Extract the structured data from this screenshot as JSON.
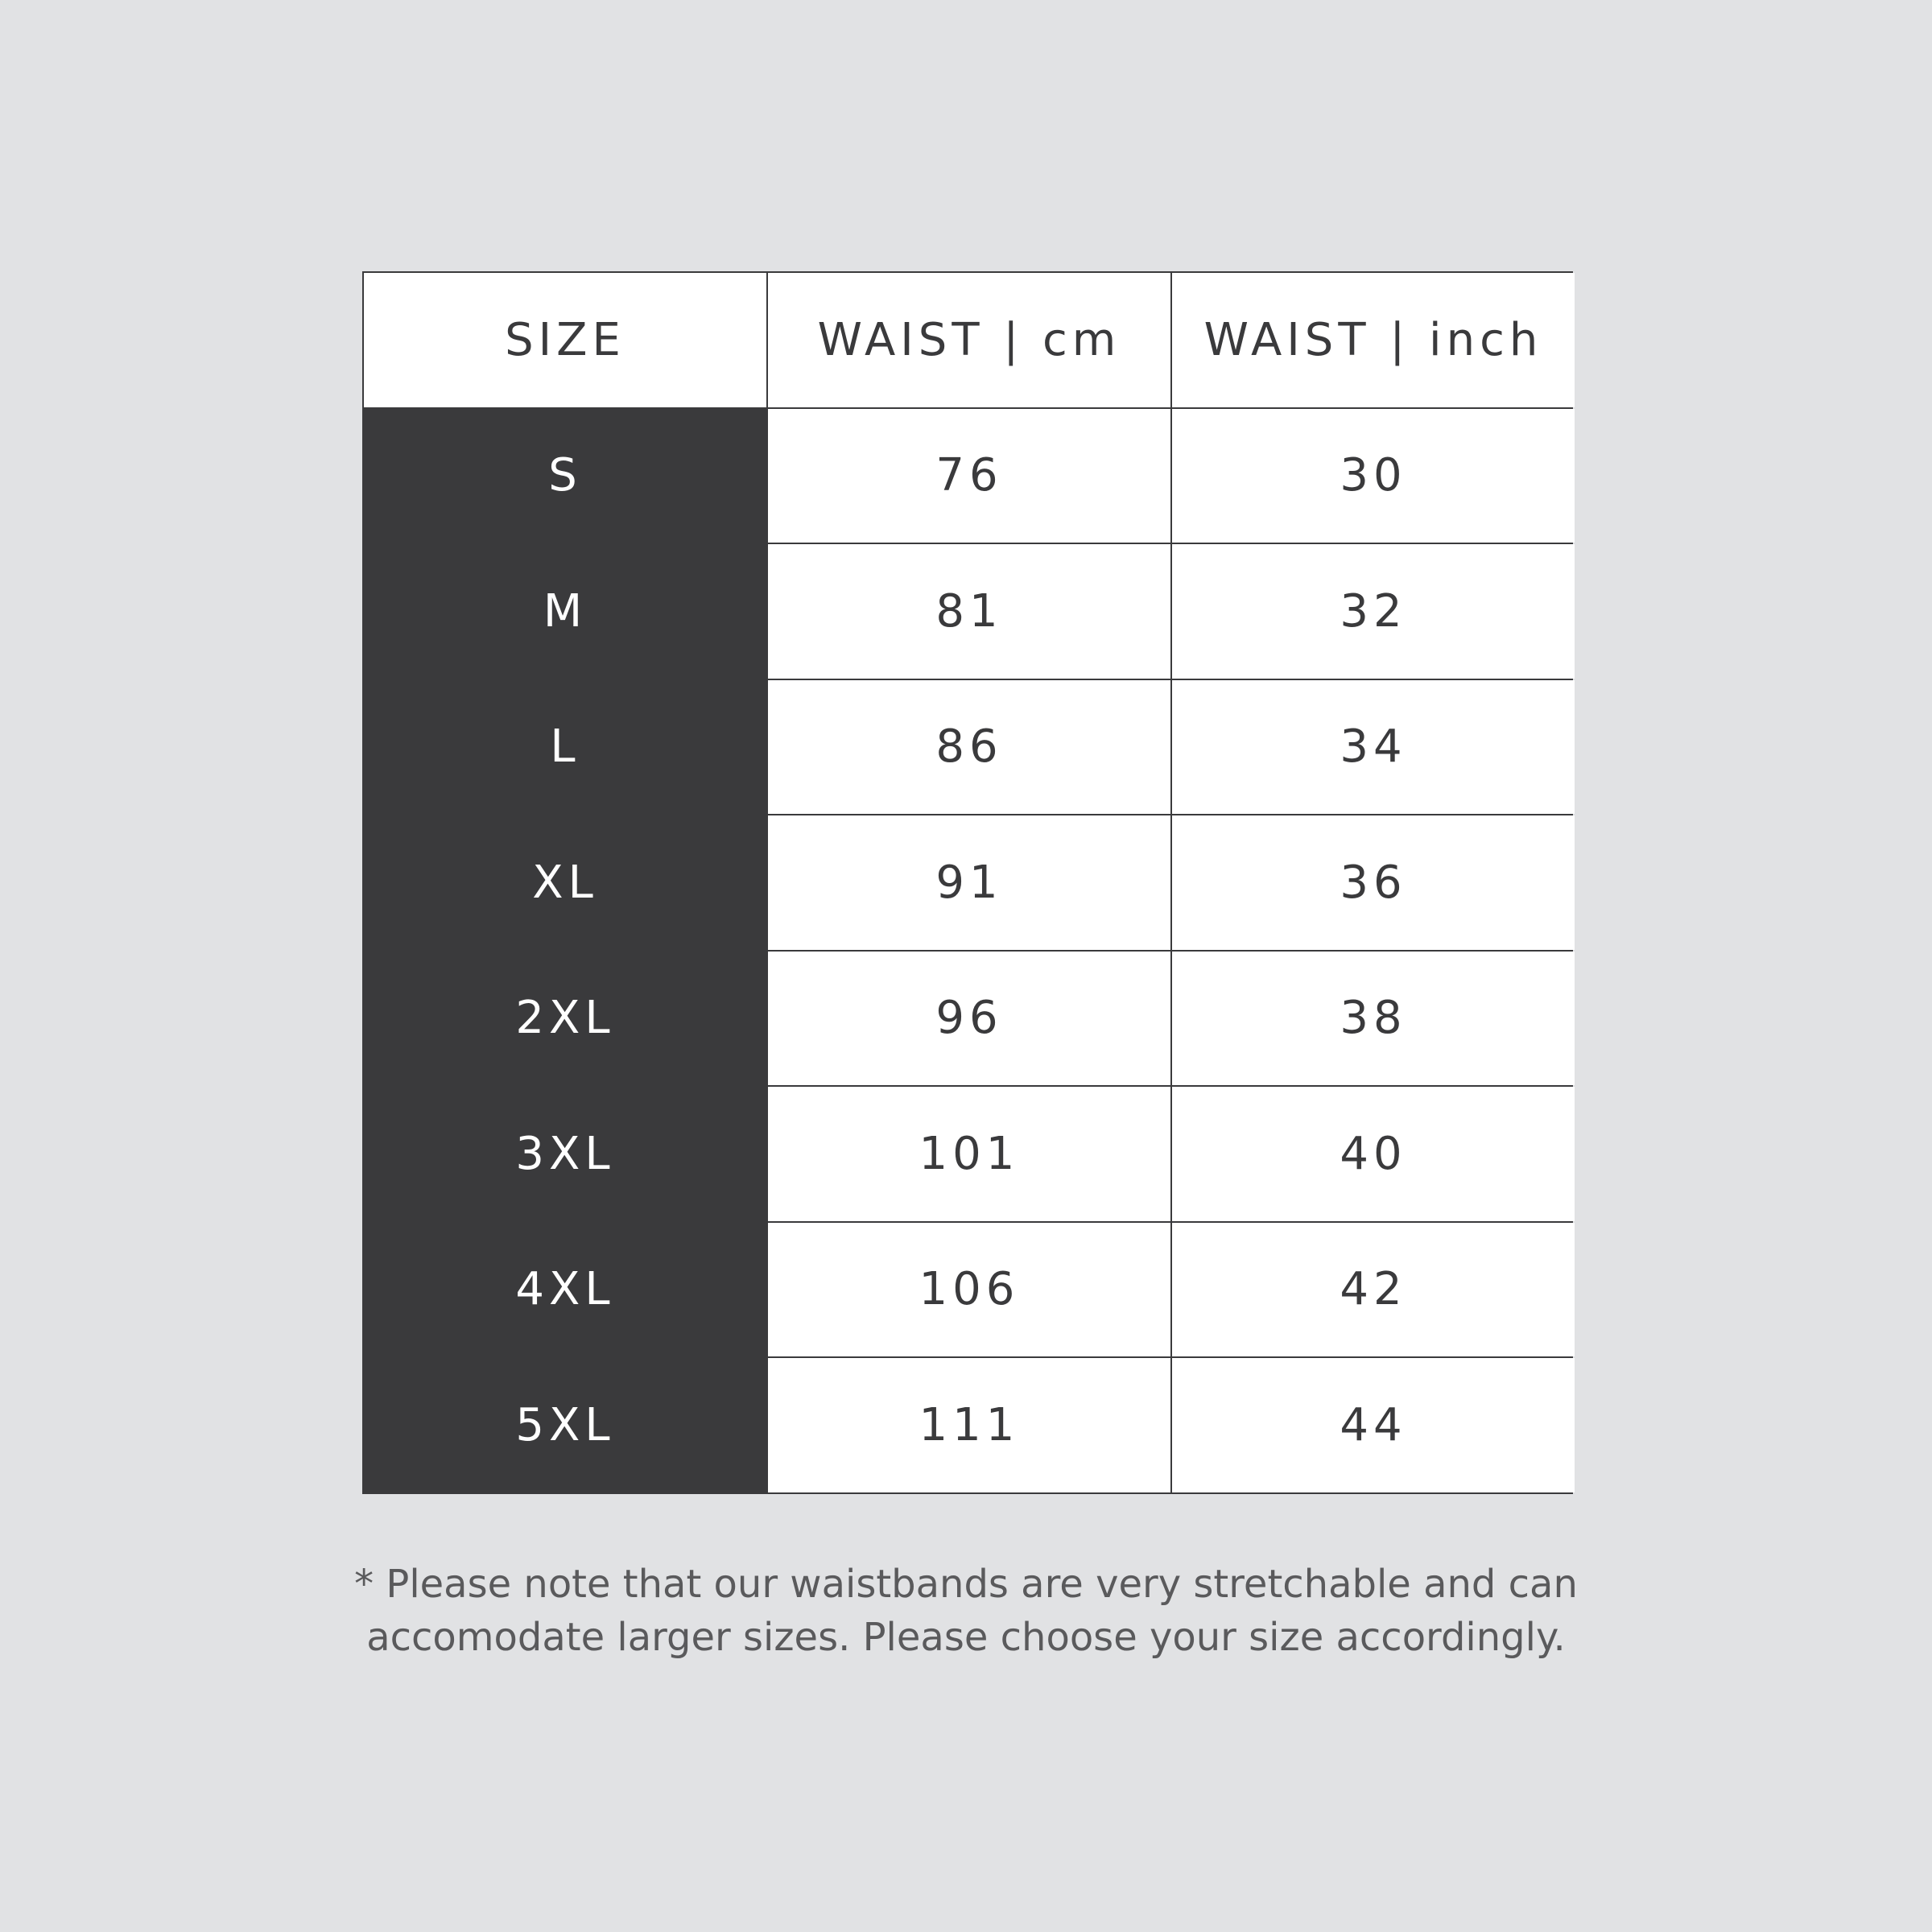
{
  "table": {
    "header": [
      "SIZE",
      "WAIST | cm",
      "WAIST | inch"
    ],
    "rows": [
      [
        "S",
        76,
        30
      ],
      [
        "M",
        81,
        32
      ],
      [
        "L",
        86,
        34
      ],
      [
        "XL",
        91,
        36
      ],
      [
        "2XL",
        96,
        38
      ],
      [
        "3XL",
        101,
        40
      ],
      [
        "4XL",
        106,
        42
      ],
      [
        "5XL",
        111,
        44
      ]
    ]
  },
  "note": {
    "lines": [
      "* Please note that our waistbands are very stretchable and can",
      "accomodate larger sizes. Please choose your size accordingly."
    ]
  }
}
